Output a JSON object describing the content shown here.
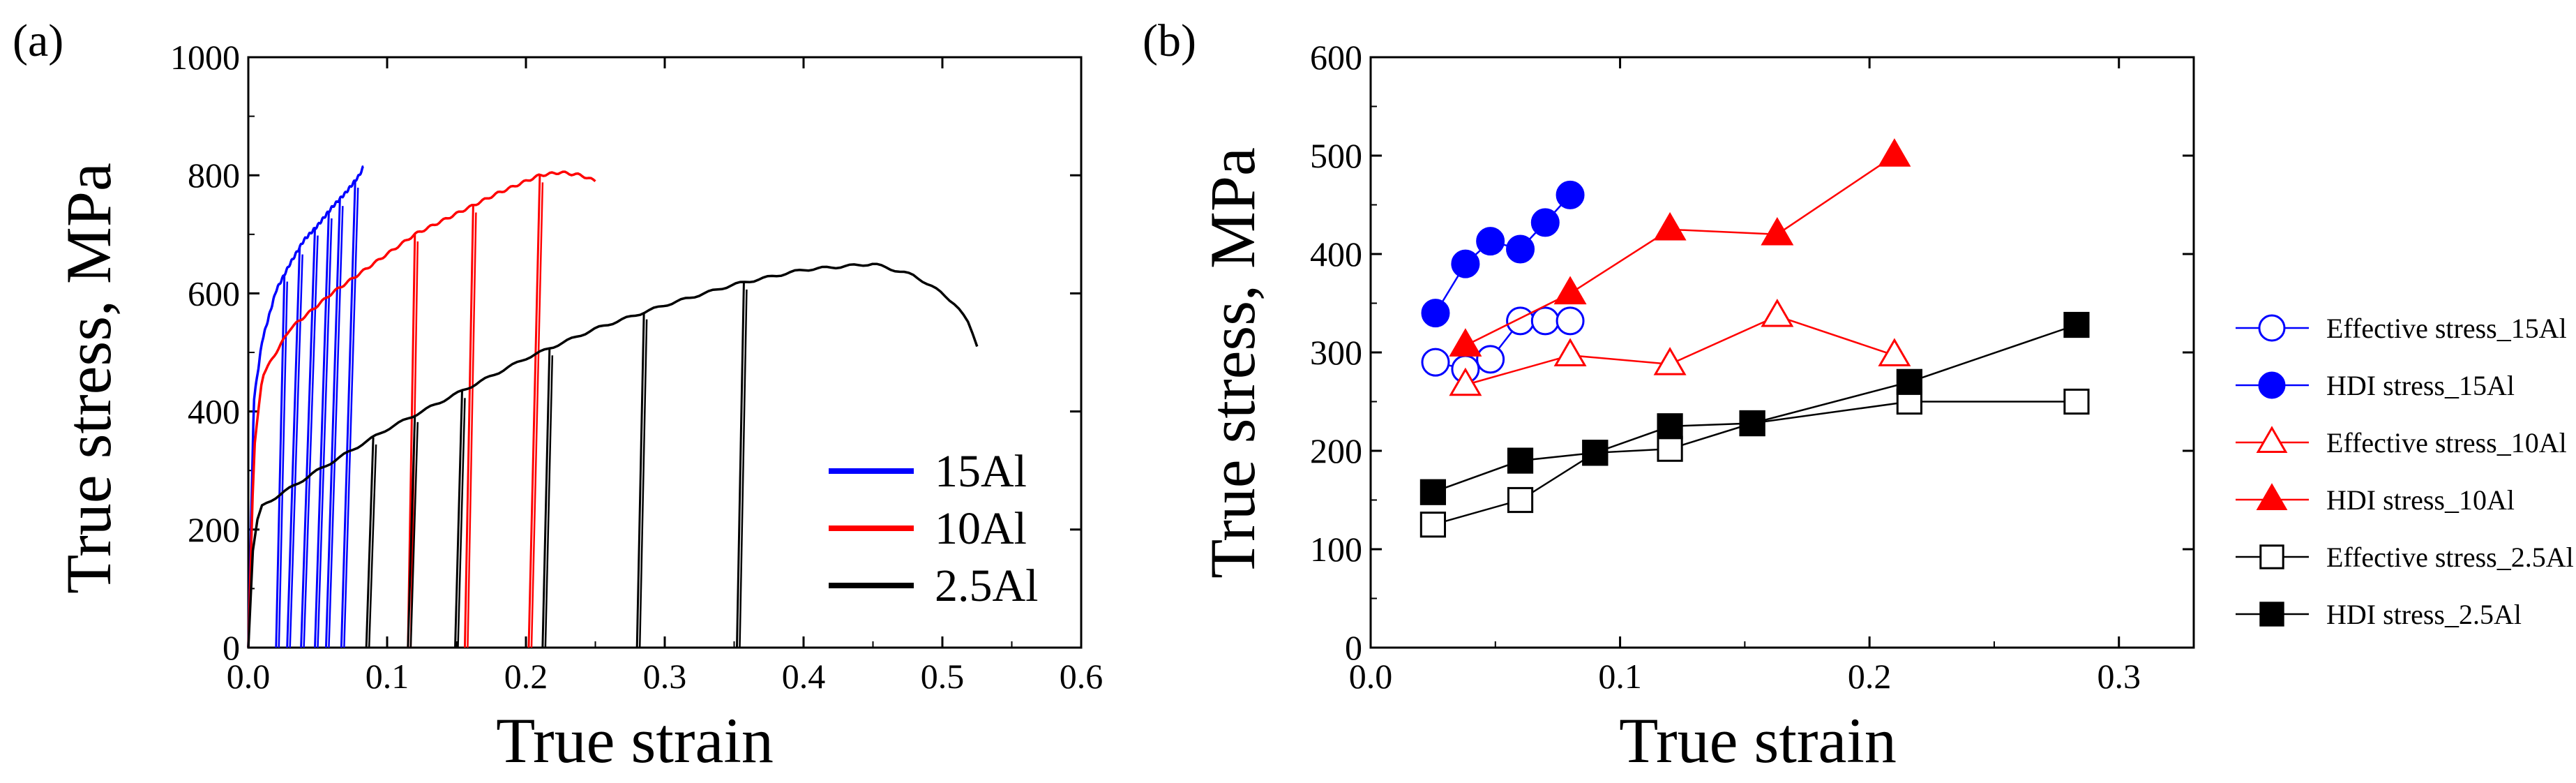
{
  "chart_data": [
    {
      "panel_label": "(a)",
      "type": "line",
      "title": "",
      "xlabel": "True strain",
      "ylabel": "True stress, MPa",
      "xlim": [
        0.0,
        0.6
      ],
      "ylim": [
        0,
        1000
      ],
      "xticks": [
        0.0,
        0.1,
        0.2,
        0.3,
        0.4,
        0.5,
        0.6
      ],
      "xtick_labels": [
        "0.0",
        "0.1",
        "0.2",
        "0.3",
        "0.4",
        "0.5",
        "0.6"
      ],
      "yticks": [
        0,
        200,
        400,
        600,
        800,
        1000
      ],
      "ytick_labels": [
        "0",
        "200",
        "400",
        "600",
        "800",
        "1000"
      ],
      "grid": false,
      "legend_position": "bottom-right",
      "series": [
        {
          "name": "15Al",
          "color": "#0000ff",
          "envelope": {
            "x": [
              0.0,
              0.004,
              0.01,
              0.02,
              0.03,
              0.04,
              0.05,
              0.06,
              0.07,
              0.08,
              0.083
            ],
            "y": [
              0,
              420,
              520,
              605,
              650,
              690,
              715,
              745,
              770,
              800,
              815
            ]
          },
          "unloads": [
            {
              "from": 0.026,
              "to": 0.02
            },
            {
              "from": 0.037,
              "to": 0.028
            },
            {
              "from": 0.048,
              "to": 0.038
            },
            {
              "from": 0.058,
              "to": 0.048
            },
            {
              "from": 0.066,
              "to": 0.056
            },
            {
              "from": 0.077,
              "to": 0.067
            }
          ]
        },
        {
          "name": "10Al",
          "color": "#ff0000",
          "envelope": {
            "x": [
              0.0,
              0.004,
              0.01,
              0.03,
              0.06,
              0.09,
              0.12,
              0.15,
              0.18,
              0.21,
              0.225,
              0.24,
              0.25
            ],
            "y": [
              0,
              330,
              460,
              540,
              600,
              650,
              700,
              735,
              770,
              800,
              805,
              800,
              790
            ]
          },
          "unloads": [
            {
              "from": 0.12,
              "to": 0.115
            },
            {
              "from": 0.162,
              "to": 0.156
            },
            {
              "from": 0.21,
              "to": 0.202
            }
          ]
        },
        {
          "name": "2.5Al",
          "color": "#000000",
          "envelope": {
            "x": [
              0.0,
              0.004,
              0.01,
              0.05,
              0.1,
              0.15,
              0.2,
              0.25,
              0.3,
              0.35,
              0.4,
              0.45,
              0.48,
              0.5,
              0.51,
              0.52,
              0.525
            ],
            "y": [
              0,
              200,
              240,
              300,
              370,
              430,
              490,
              540,
              580,
              615,
              640,
              650,
              630,
              600,
              580,
              545,
              510
            ]
          },
          "unloads": [
            {
              "from": 0.09,
              "to": 0.085
            },
            {
              "from": 0.12,
              "to": 0.115
            },
            {
              "from": 0.154,
              "to": 0.149
            },
            {
              "from": 0.217,
              "to": 0.212
            },
            {
              "from": 0.285,
              "to": 0.28
            },
            {
              "from": 0.357,
              "to": 0.352
            }
          ]
        }
      ]
    },
    {
      "panel_label": "(b)",
      "type": "line",
      "title": "",
      "xlabel": "True strain",
      "ylabel": "True stress, MPa",
      "xlim": [
        0.0,
        0.33
      ],
      "ylim": [
        0,
        600
      ],
      "xticks": [
        0.0,
        0.1,
        0.2,
        0.3
      ],
      "xtick_labels": [
        "0.0",
        "0.1",
        "0.2",
        "0.3"
      ],
      "yticks": [
        0,
        100,
        200,
        300,
        400,
        500,
        600
      ],
      "ytick_labels": [
        "0",
        "100",
        "200",
        "300",
        "400",
        "500",
        "600"
      ],
      "grid": false,
      "legend_position": "right",
      "series": [
        {
          "name": "Effective stress_15Al",
          "color": "#0000ff",
          "marker": "circle",
          "filled": false,
          "x": [
            0.026,
            0.038,
            0.048,
            0.06,
            0.07,
            0.08
          ],
          "y": [
            290,
            283,
            293,
            332,
            332,
            332
          ]
        },
        {
          "name": "HDI stress_15Al",
          "color": "#0000ff",
          "marker": "circle",
          "filled": true,
          "x": [
            0.026,
            0.038,
            0.048,
            0.06,
            0.07,
            0.08
          ],
          "y": [
            340,
            390,
            413,
            405,
            432,
            460
          ]
        },
        {
          "name": "Effective stress_10Al",
          "color": "#ff0000",
          "marker": "triangle",
          "filled": false,
          "x": [
            0.038,
            0.08,
            0.12,
            0.163,
            0.21
          ],
          "y": [
            267,
            297,
            288,
            337,
            297
          ]
        },
        {
          "name": "HDI stress_10Al",
          "color": "#ff0000",
          "marker": "triangle",
          "filled": true,
          "x": [
            0.038,
            0.08,
            0.12,
            0.163,
            0.21
          ],
          "y": [
            307,
            360,
            425,
            420,
            500
          ]
        },
        {
          "name": "Effective stress_2.5Al",
          "color": "#000000",
          "marker": "square",
          "filled": false,
          "x": [
            0.025,
            0.06,
            0.09,
            0.12,
            0.153,
            0.216,
            0.283
          ],
          "y": [
            125,
            150,
            198,
            202,
            228,
            250,
            250
          ]
        },
        {
          "name": "HDI stress_2.5Al",
          "color": "#000000",
          "marker": "square",
          "filled": true,
          "x": [
            0.025,
            0.06,
            0.09,
            0.12,
            0.153,
            0.216,
            0.283
          ],
          "y": [
            158,
            190,
            198,
            225,
            228,
            270,
            328
          ]
        }
      ]
    }
  ]
}
